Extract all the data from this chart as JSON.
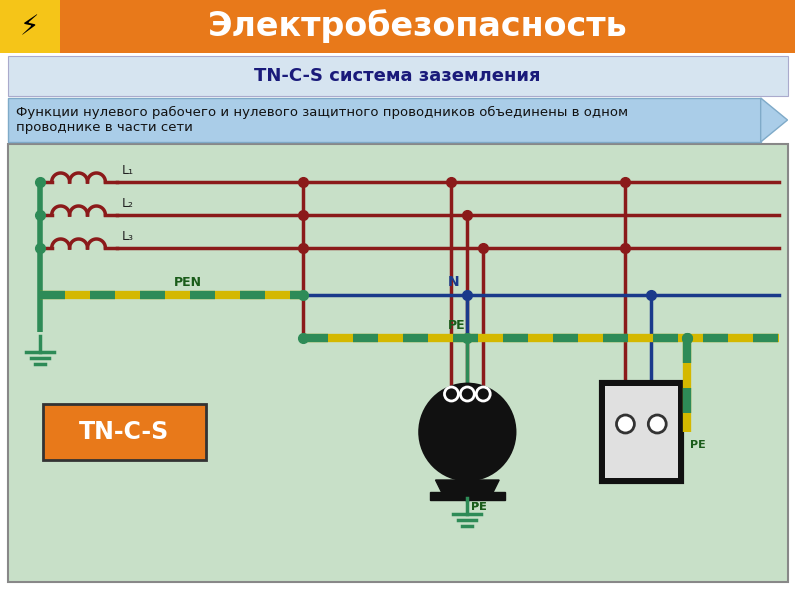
{
  "title": "Электробезопасность",
  "subtitle": "TN-C-S система заземления",
  "description": "Функции нулевого рабочего и нулевого защитного проводников объединены в одном\nпроводнике в части сети",
  "header_bg": "#E8791A",
  "header_yellow": "#F5C518",
  "subtitle_bg": "#D6E4F0",
  "desc_bg": "#AACDE8",
  "diagram_bg": "#C8E0C8",
  "tn_label": "TN-C-S",
  "tn_bg": "#E8791A",
  "wire_red": "#8B1A1A",
  "wire_blue": "#1A3A8B",
  "wire_green": "#2E8B57",
  "wire_pen_yellow": "#D4B800",
  "bg_white": "#FFFFFF"
}
